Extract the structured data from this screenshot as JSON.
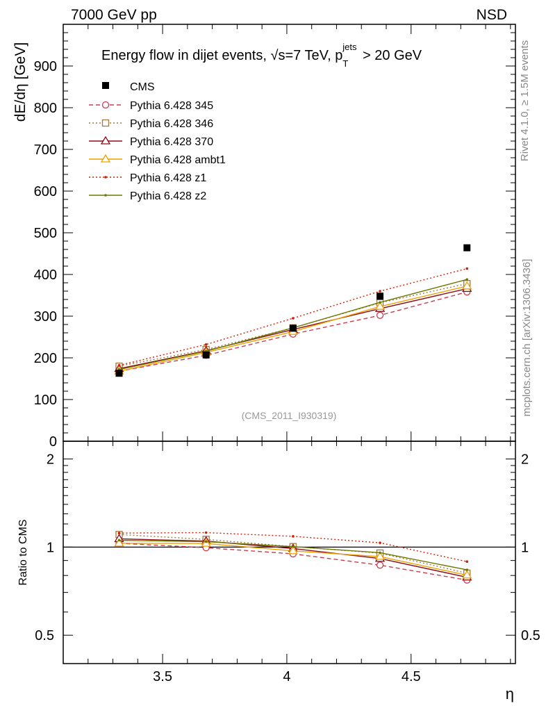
{
  "header": {
    "left": "7000 GeV pp",
    "right": "NSD"
  },
  "side": {
    "rivet": "Rivet 4.1.0, ≥ 1.5M events",
    "mcplots": "mcplots.cern.ch [arXiv:1306.3436]"
  },
  "chart_data": {
    "type": "line",
    "title": {
      "prefix": "Energy flow in dijet events, ",
      "sqrt_s": "√s",
      "energy": "=7 TeV, p",
      "sub": "T",
      "sup": "jets",
      "cut": " > 20 GeV"
    },
    "watermark": "(CMS_2011_I930319)",
    "xlabel": "η",
    "ylabel_main": "dE/dη [GeV]",
    "ylabel_ratio": "Ratio to CMS",
    "xlim": [
      3.1,
      4.92
    ],
    "ylim_main": [
      0,
      1000
    ],
    "ylim_ratio": [
      0.4,
      2.3
    ],
    "x_ticks": [
      3.5,
      4,
      4.5
    ],
    "x_tick_labels": [
      "3.5",
      "4",
      "4.5"
    ],
    "y_ticks_main": [
      0,
      100,
      200,
      300,
      400,
      500,
      600,
      700,
      800,
      900
    ],
    "y_tick_labels_main": [
      "0",
      "100",
      "200",
      "300",
      "400",
      "500",
      "600",
      "700",
      "800",
      "900"
    ],
    "y_ticks_ratio": [
      0.5,
      1,
      2
    ],
    "y_tick_labels_ratio": [
      "0.5",
      "1",
      "2"
    ],
    "x": [
      3.325,
      3.675,
      4.025,
      4.375,
      4.725
    ],
    "reference": {
      "name": "CMS",
      "values": [
        163,
        207,
        271,
        348,
        464
      ],
      "color": "#000000"
    },
    "series": [
      {
        "name": "Pythia 6.428 345",
        "values": [
          168,
          206,
          257,
          302,
          358
        ],
        "color": "#c83c50",
        "dash": "6,4",
        "marker": "circle"
      },
      {
        "name": "Pythia 6.428 346",
        "values": [
          180,
          220,
          272,
          332,
          378
        ],
        "color": "#a07840",
        "dash": "2,3",
        "marker": "square"
      },
      {
        "name": "Pythia 6.428 370",
        "values": [
          174,
          217,
          268,
          318,
          366
        ],
        "color": "#8c0a14",
        "dash": "",
        "marker": "triangle"
      },
      {
        "name": "Pythia 6.428 ambt1",
        "values": [
          168,
          213,
          263,
          323,
          372
        ],
        "color": "#f0a000",
        "dash": "",
        "marker": "triangle"
      },
      {
        "name": "Pythia 6.428 z1",
        "values": [
          182,
          232,
          295,
          360,
          414
        ],
        "color": "#d21e00",
        "dash": "2,3",
        "marker": "dot"
      },
      {
        "name": "Pythia 6.428 z2",
        "values": [
          172,
          216,
          272,
          333,
          388
        ],
        "color": "#6e7800",
        "dash": "",
        "marker": "dot"
      }
    ]
  }
}
